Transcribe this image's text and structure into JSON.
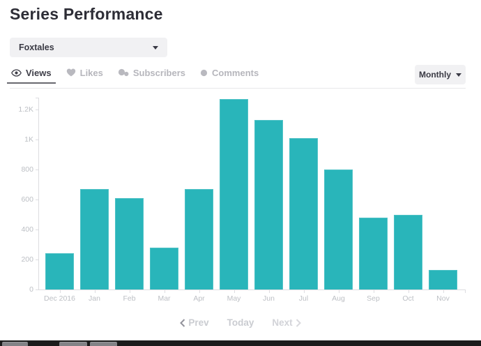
{
  "page": {
    "title": "Series Performance"
  },
  "series_selector": {
    "value": "Foxtales",
    "icon": "caret-down"
  },
  "tabs": [
    {
      "label": "Views",
      "icon": "eye-icon",
      "active": true
    },
    {
      "label": "Likes",
      "icon": "heart-icon",
      "active": false
    },
    {
      "label": "Subscribers",
      "icon": "chat-bubbles-icon",
      "active": false
    },
    {
      "label": "Comments",
      "icon": "speech-bubble-icon",
      "active": false
    }
  ],
  "interval_selector": {
    "value": "Monthly",
    "icon": "caret-down"
  },
  "chart_data": {
    "type": "bar",
    "title": "",
    "metric": "Views",
    "interval": "Monthly",
    "categories": [
      "Dec 2016",
      "Jan",
      "Feb",
      "Mar",
      "Apr",
      "May",
      "Jun",
      "Jul",
      "Aug",
      "Sep",
      "Oct",
      "Nov"
    ],
    "values": [
      240,
      670,
      610,
      280,
      670,
      1270,
      1130,
      1010,
      800,
      480,
      500,
      130
    ],
    "xlabel": "",
    "ylabel": "",
    "y_ticks": [
      {
        "label": "0",
        "value": 0
      },
      {
        "label": "200",
        "value": 200
      },
      {
        "label": "400",
        "value": 400
      },
      {
        "label": "600",
        "value": 600
      },
      {
        "label": "800",
        "value": 800
      },
      {
        "label": "1K",
        "value": 1000
      },
      {
        "label": "1.2K",
        "value": 1200
      }
    ],
    "ylim": [
      0,
      1280
    ],
    "grid": false,
    "legend": "none",
    "bar_color": "#29b5ba",
    "bar_edge_color": "#4fc2c6",
    "axis_color": "#dcdce0",
    "tick_label_color": "#bcbfc4"
  },
  "pagination": {
    "prev": "Prev",
    "today": "Today",
    "next": "Next"
  }
}
